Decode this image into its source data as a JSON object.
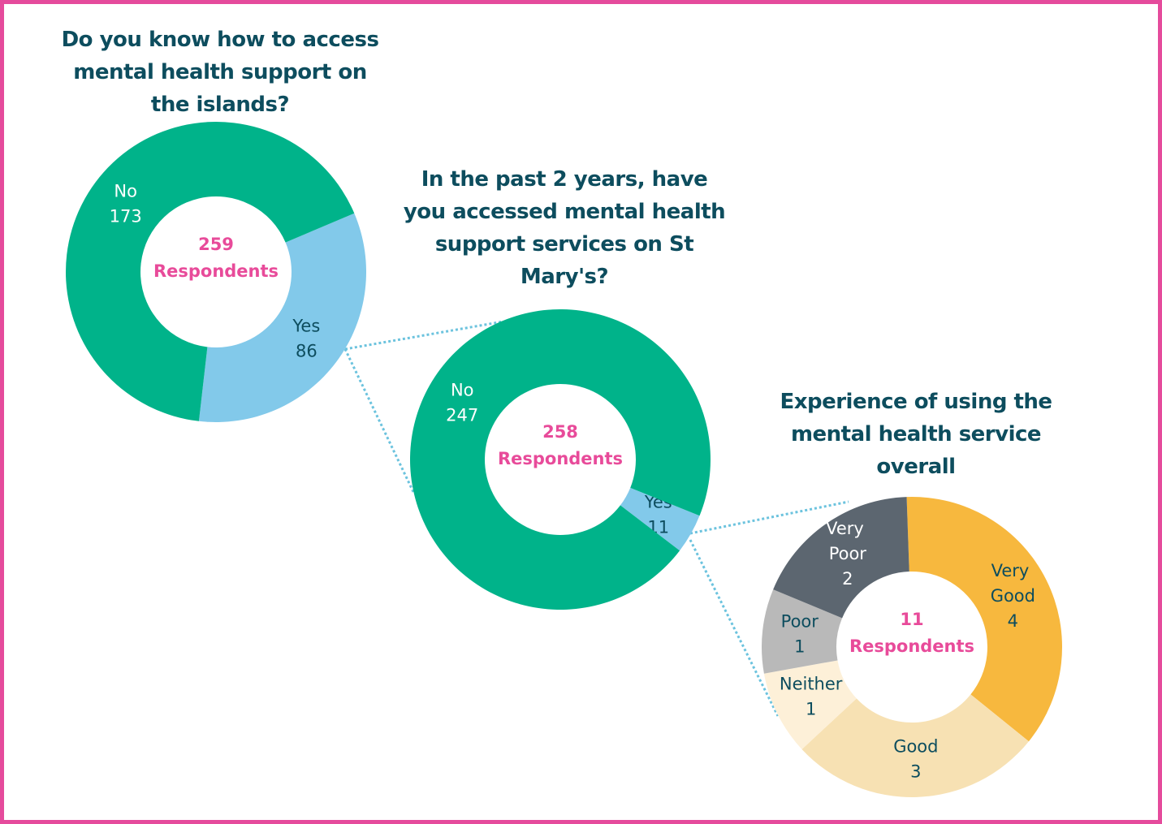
{
  "chart_data": [
    {
      "type": "donut",
      "title": "Do you know how to access mental health support on the islands?",
      "total": 259,
      "total_label": "Respondents",
      "categories": [
        "Yes",
        "No"
      ],
      "values": [
        86,
        173
      ],
      "colors": [
        "#82c9ea",
        "#00b38a"
      ]
    },
    {
      "type": "donut",
      "title": "In the past 2 years, have you accessed mental health support services on St Mary's?",
      "total": 258,
      "total_label": "Respondents",
      "categories": [
        "Yes",
        "No"
      ],
      "values": [
        11,
        247
      ],
      "colors": [
        "#82c9ea",
        "#00b38a"
      ]
    },
    {
      "type": "donut",
      "title": "Experience of using the mental health service overall",
      "total": 11,
      "total_label": "Respondents",
      "categories": [
        "Very Good",
        "Good",
        "Neither",
        "Poor",
        "Very Poor"
      ],
      "values": [
        4,
        3,
        1,
        1,
        2
      ],
      "colors": [
        "#f7b83e",
        "#f7e1b3",
        "#fdf0d8",
        "#b9b9b9",
        "#5c6670"
      ]
    }
  ]
}
